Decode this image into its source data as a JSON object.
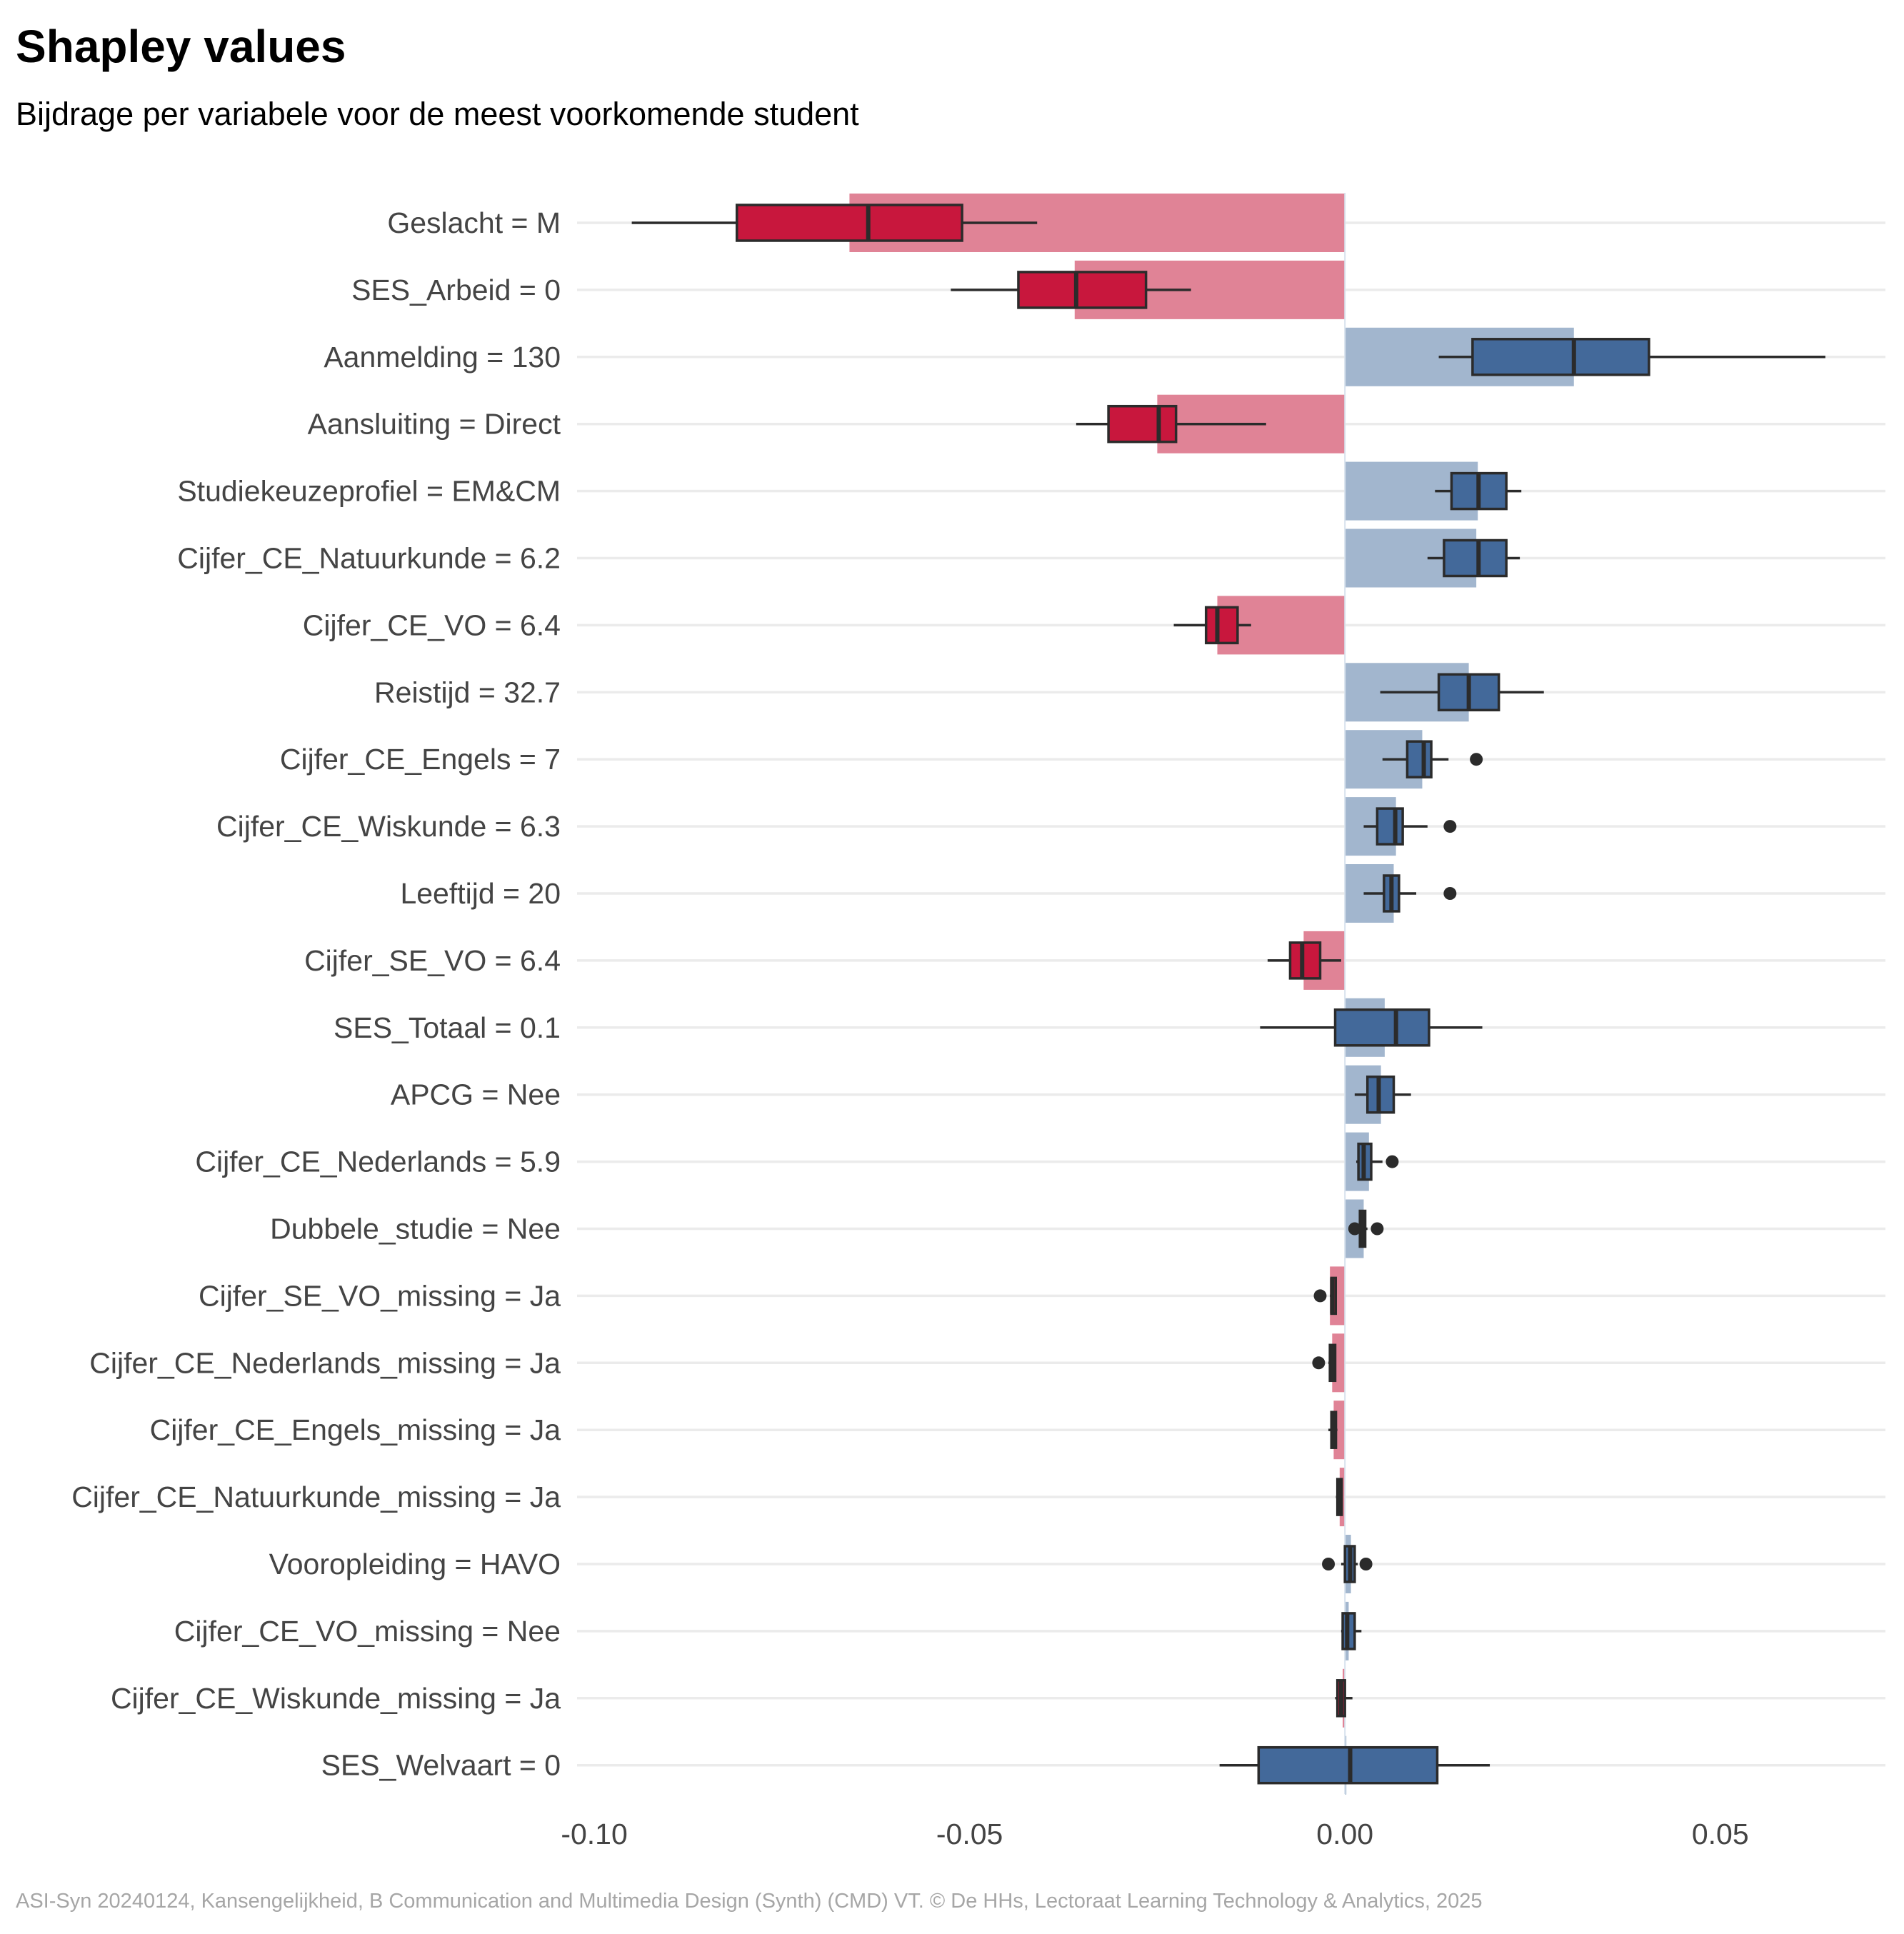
{
  "chart_data": {
    "type": "bar",
    "title": "Shapley values",
    "subtitle": "Bijdrage per variabele voor de meest voorkomende student",
    "caption": "ASI-Syn 20240124, Kansengelijkheid, B Communication and Multimedia Design (Synth) (CMD) VT. © De HHs, Lectoraat Learning Technology & Analytics, 2025",
    "xlabel": "",
    "ylabel": "",
    "xlim": [
      -0.104,
      0.072
    ],
    "x_ticks": [
      -0.1,
      -0.05,
      0.0,
      0.05
    ],
    "x_tick_labels": [
      "-0.10",
      "-0.05",
      "0.00",
      "0.05"
    ],
    "grid": "horizontal",
    "legend": "none",
    "colors": {
      "negative_bar": "#e08396",
      "positive_bar": "#a2b6ce",
      "negative_box": "#c8173d",
      "positive_box": "#43699a",
      "box_line": "#2b2b2b",
      "grid": "#ebebeb",
      "zero_line": "#d7e1ec"
    },
    "categories": [
      "Geslacht = M",
      "SES_Arbeid = 0",
      "Aanmelding = 130",
      "Aansluiting = Direct",
      "Studiekeuzeprofiel = EM&CM",
      "Cijfer_CE_Natuurkunde = 6.2",
      "Cijfer_CE_VO = 6.4",
      "Reistijd = 32.7",
      "Cijfer_CE_Engels = 7",
      "Cijfer_CE_Wiskunde = 6.3",
      "Leeftijd = 20",
      "Cijfer_SE_VO = 6.4",
      "SES_Totaal = 0.1",
      "APCG = Nee",
      "Cijfer_CE_Nederlands = 5.9",
      "Dubbele_studie = Nee",
      "Cijfer_SE_VO_missing = Ja",
      "Cijfer_CE_Nederlands_missing = Ja",
      "Cijfer_CE_Engels_missing = Ja",
      "Cijfer_CE_Natuurkunde_missing = Ja",
      "Vooropleiding = HAVO",
      "Cijfer_CE_VO_missing = Nee",
      "Cijfer_CE_Wiskunde_missing = Ja",
      "SES_Welvaart = 0"
    ],
    "values": [
      -0.066,
      -0.036,
      0.0305,
      -0.025,
      0.0177,
      0.0175,
      -0.017,
      0.0165,
      0.0103,
      0.0068,
      0.0065,
      -0.0055,
      0.0053,
      0.0048,
      0.0032,
      0.0025,
      -0.002,
      -0.0017,
      -0.0015,
      -0.0007,
      0.0008,
      0.0005,
      -0.0003,
      0.0
    ],
    "boxplots": [
      {
        "whisker_low": -0.095,
        "q1": -0.081,
        "median": -0.0635,
        "q3": -0.051,
        "whisker_high": -0.041,
        "outliers": []
      },
      {
        "whisker_low": -0.0525,
        "q1": -0.0435,
        "median": -0.0358,
        "q3": -0.0265,
        "whisker_high": -0.0205,
        "outliers": []
      },
      {
        "whisker_low": 0.0125,
        "q1": 0.017,
        "median": 0.0305,
        "q3": 0.0405,
        "whisker_high": 0.064,
        "outliers": []
      },
      {
        "whisker_low": -0.0358,
        "q1": -0.0315,
        "median": -0.0248,
        "q3": -0.0225,
        "whisker_high": -0.0105,
        "outliers": []
      },
      {
        "whisker_low": 0.012,
        "q1": 0.0142,
        "median": 0.0178,
        "q3": 0.0215,
        "whisker_high": 0.0235,
        "outliers": []
      },
      {
        "whisker_low": 0.011,
        "q1": 0.0132,
        "median": 0.0178,
        "q3": 0.0215,
        "whisker_high": 0.0233,
        "outliers": []
      },
      {
        "whisker_low": -0.0228,
        "q1": -0.0185,
        "median": -0.017,
        "q3": -0.0143,
        "whisker_high": -0.0125,
        "outliers": []
      },
      {
        "whisker_low": 0.0047,
        "q1": 0.0125,
        "median": 0.0165,
        "q3": 0.0205,
        "whisker_high": 0.0265,
        "outliers": []
      },
      {
        "whisker_low": 0.005,
        "q1": 0.0083,
        "median": 0.0105,
        "q3": 0.0115,
        "whisker_high": 0.0138,
        "outliers": [
          0.0175
        ]
      },
      {
        "whisker_low": 0.0025,
        "q1": 0.0043,
        "median": 0.0067,
        "q3": 0.0077,
        "whisker_high": 0.011,
        "outliers": [
          0.014
        ]
      },
      {
        "whisker_low": 0.0025,
        "q1": 0.0052,
        "median": 0.0062,
        "q3": 0.0072,
        "whisker_high": 0.0095,
        "outliers": [
          0.014
        ]
      },
      {
        "whisker_low": -0.0103,
        "q1": -0.0073,
        "median": -0.0057,
        "q3": -0.0033,
        "whisker_high": -0.0005,
        "outliers": []
      },
      {
        "whisker_low": -0.0113,
        "q1": -0.0013,
        "median": 0.0068,
        "q3": 0.0112,
        "whisker_high": 0.0183,
        "outliers": []
      },
      {
        "whisker_low": 0.0013,
        "q1": 0.003,
        "median": 0.0045,
        "q3": 0.0065,
        "whisker_high": 0.0088,
        "outliers": []
      },
      {
        "whisker_low": 0.0015,
        "q1": 0.0018,
        "median": 0.0025,
        "q3": 0.0035,
        "whisker_high": 0.005,
        "outliers": [
          0.0063
        ]
      },
      {
        "whisker_low": 0.0015,
        "q1": 0.002,
        "median": 0.0023,
        "q3": 0.0027,
        "whisker_high": 0.003,
        "outliers": [
          0.0013,
          0.0043
        ]
      },
      {
        "whisker_low": -0.002,
        "q1": -0.0018,
        "median": -0.0017,
        "q3": -0.0015,
        "whisker_high": -0.0013,
        "outliers": [
          -0.0033
        ]
      },
      {
        "whisker_low": -0.0022,
        "q1": -0.002,
        "median": -0.0017,
        "q3": -0.0013,
        "whisker_high": -0.0012,
        "outliers": [
          -0.0035
        ]
      },
      {
        "whisker_low": -0.0022,
        "q1": -0.0018,
        "median": -0.0015,
        "q3": -0.0012,
        "whisker_high": -0.001,
        "outliers": []
      },
      {
        "whisker_low": -0.0012,
        "q1": -0.001,
        "median": -0.0007,
        "q3": -0.0005,
        "whisker_high": -0.0003,
        "outliers": []
      },
      {
        "whisker_low": -0.0005,
        "q1": 0.0,
        "median": 0.0007,
        "q3": 0.0013,
        "whisker_high": 0.0017,
        "outliers": [
          -0.0022,
          0.0028
        ]
      },
      {
        "whisker_low": -0.0005,
        "q1": -0.0003,
        "median": 0.0003,
        "q3": 0.0013,
        "whisker_high": 0.0022,
        "outliers": []
      },
      {
        "whisker_low": -0.0013,
        "q1": -0.001,
        "median": -0.0005,
        "q3": 0.0,
        "whisker_high": 0.001,
        "outliers": []
      },
      {
        "whisker_low": -0.0167,
        "q1": -0.0115,
        "median": 0.0007,
        "q3": 0.0123,
        "whisker_high": 0.0193,
        "outliers": []
      }
    ]
  }
}
